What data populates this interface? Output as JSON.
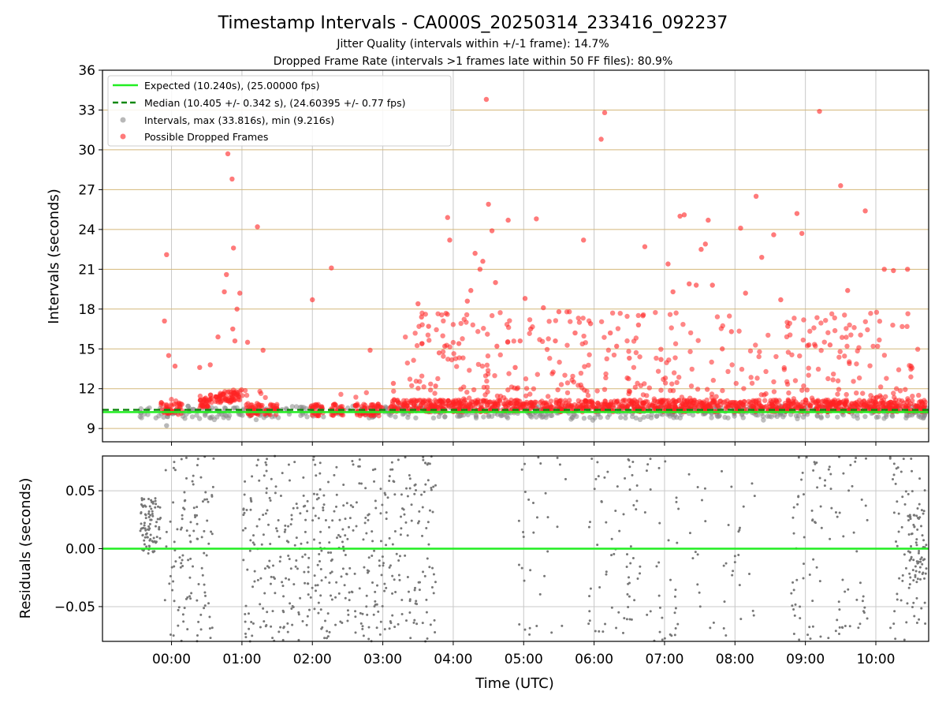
{
  "figure": {
    "title": "Timestamp Intervals - CA000S_20250314_233416_092237",
    "subtitle_1": "Jitter Quality (intervals within +/-1 frame): 14.7%",
    "subtitle_2": "Dropped Frame Rate (intervals >1 frames late within 50 FF files): 80.9%"
  },
  "chart_data": [
    {
      "type": "scatter",
      "ylabel": "Intervals (seconds)",
      "xlim_hours": [
        -0.98,
        10.75
      ],
      "ylim": [
        8,
        36
      ],
      "yticks": [
        9,
        12,
        15,
        18,
        21,
        24,
        27,
        30,
        33,
        36
      ],
      "grid": "on",
      "legend_position": "top-left",
      "expected": {
        "label": "Expected (10.240s), (25.00000 fps)",
        "value": 10.24,
        "color": "#22ee22"
      },
      "median": {
        "label": "Median (10.405 +/- 0.342 s), (24.60395 +/- 0.77 fps)",
        "value": 10.405,
        "color": "#118811"
      },
      "intervals_series": {
        "label": "Intervals, max (33.816s), min (9.216s)",
        "max": 33.816,
        "min": 9.216,
        "color": "#888888"
      },
      "dropped_series": {
        "label": "Possible Dropped Frames",
        "color": "#ff2222"
      },
      "dropped_outliers": [
        [
          -0.1,
          17.1
        ],
        [
          -0.07,
          22.1
        ],
        [
          -0.04,
          14.5
        ],
        [
          0.05,
          13.7
        ],
        [
          0.4,
          13.6
        ],
        [
          0.55,
          13.8
        ],
        [
          0.66,
          15.9
        ],
        [
          0.75,
          19.3
        ],
        [
          0.78,
          20.6
        ],
        [
          0.8,
          29.7
        ],
        [
          0.86,
          27.8
        ],
        [
          0.88,
          22.6
        ],
        [
          0.87,
          16.5
        ],
        [
          0.9,
          15.6
        ],
        [
          0.93,
          18.0
        ],
        [
          0.97,
          19.2
        ],
        [
          1.08,
          15.5
        ],
        [
          1.22,
          24.2
        ],
        [
          1.3,
          14.9
        ],
        [
          2.0,
          18.7
        ],
        [
          2.27,
          21.1
        ],
        [
          2.82,
          14.9
        ],
        [
          3.15,
          12.4
        ],
        [
          3.5,
          18.4
        ],
        [
          3.55,
          17.4
        ],
        [
          3.65,
          16.7
        ],
        [
          3.75,
          12.2
        ],
        [
          3.8,
          14.7
        ],
        [
          3.88,
          15.2
        ],
        [
          3.92,
          24.9
        ],
        [
          3.95,
          23.2
        ],
        [
          4.08,
          15.4
        ],
        [
          4.2,
          18.6
        ],
        [
          4.25,
          19.4
        ],
        [
          4.31,
          22.2
        ],
        [
          4.38,
          21.0
        ],
        [
          4.42,
          21.6
        ],
        [
          4.47,
          33.8
        ],
        [
          4.5,
          25.9
        ],
        [
          4.55,
          23.9
        ],
        [
          4.6,
          20.0
        ],
        [
          4.62,
          15.2
        ],
        [
          4.78,
          24.7
        ],
        [
          4.88,
          13.6
        ],
        [
          4.95,
          15.6
        ],
        [
          5.02,
          18.8
        ],
        [
          5.1,
          16.5
        ],
        [
          5.18,
          24.8
        ],
        [
          5.28,
          18.1
        ],
        [
          5.45,
          15.6
        ],
        [
          5.5,
          17.8
        ],
        [
          5.73,
          16.2
        ],
        [
          5.85,
          23.2
        ],
        [
          5.95,
          16.9
        ],
        [
          6.1,
          30.8
        ],
        [
          6.15,
          32.8
        ],
        [
          6.23,
          16.2
        ],
        [
          6.32,
          15.2
        ],
        [
          6.5,
          14.3
        ],
        [
          6.63,
          16.8
        ],
        [
          6.72,
          22.7
        ],
        [
          6.95,
          14.2
        ],
        [
          7.05,
          21.4
        ],
        [
          7.12,
          19.3
        ],
        [
          7.22,
          25.0
        ],
        [
          7.28,
          25.1
        ],
        [
          7.35,
          19.9
        ],
        [
          7.45,
          19.8
        ],
        [
          7.52,
          22.5
        ],
        [
          7.58,
          22.9
        ],
        [
          7.62,
          24.7
        ],
        [
          7.68,
          19.8
        ],
        [
          7.82,
          15.0
        ],
        [
          7.95,
          16.3
        ],
        [
          8.08,
          24.1
        ],
        [
          8.15,
          19.2
        ],
        [
          8.3,
          26.5
        ],
        [
          8.38,
          21.9
        ],
        [
          8.55,
          23.6
        ],
        [
          8.65,
          18.7
        ],
        [
          8.75,
          16.7
        ],
        [
          8.88,
          25.2
        ],
        [
          8.95,
          23.7
        ],
        [
          9.05,
          15.3
        ],
        [
          9.2,
          32.9
        ],
        [
          9.35,
          15.3
        ],
        [
          9.5,
          27.3
        ],
        [
          9.6,
          19.4
        ],
        [
          9.85,
          25.4
        ],
        [
          10.12,
          21.0
        ],
        [
          10.25,
          20.9
        ],
        [
          10.45,
          21.0
        ],
        [
          10.5,
          13.7
        ]
      ]
    },
    {
      "type": "scatter",
      "xlabel": "Time (UTC)",
      "ylabel": "Residuals (seconds)",
      "ylim": [
        -0.08,
        0.08
      ],
      "yticks": [
        0.05,
        0.0,
        -0.05
      ],
      "ytick_labels": [
        "0.05",
        "0.00",
        "−0.05"
      ],
      "xtick_hours": [
        0,
        1,
        2,
        3,
        4,
        5,
        6,
        7,
        8,
        9,
        10
      ],
      "xtick_labels": [
        "00:00",
        "01:00",
        "02:00",
        "03:00",
        "04:00",
        "05:00",
        "06:00",
        "07:00",
        "08:00",
        "09:00",
        "10:00"
      ],
      "zero_line_color": "#22ee22",
      "points_color": "#777777"
    }
  ]
}
